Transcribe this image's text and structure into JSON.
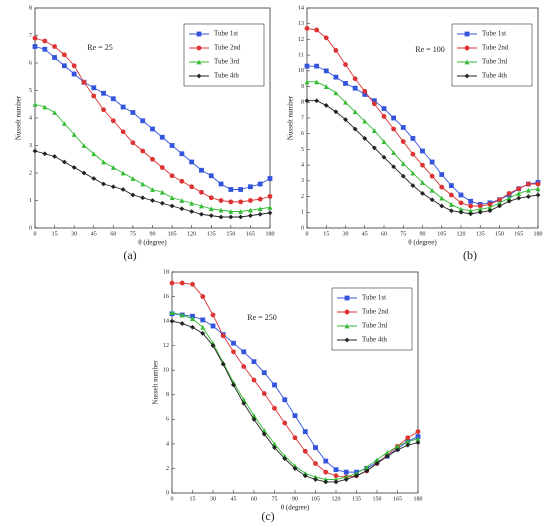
{
  "chart_data": [
    {
      "type": "line",
      "panel_label": "(a)",
      "annotation": "Re = 25",
      "x_label": "θ (degree)",
      "y_label": "Nusselt number",
      "x": [
        0,
        7.5,
        15,
        22.5,
        30,
        37.5,
        45,
        52.5,
        60,
        67.5,
        75,
        82.5,
        90,
        97.5,
        105,
        112.5,
        120,
        127.5,
        135,
        142.5,
        150,
        157.5,
        165,
        172.5,
        180
      ],
      "xlim": [
        0,
        180
      ],
      "xticks": [
        0,
        15,
        30,
        45,
        60,
        75,
        90,
        105,
        120,
        135,
        150,
        165,
        180
      ],
      "ylim": [
        0,
        8
      ],
      "yticks": [
        0,
        1,
        2,
        3,
        4,
        5,
        6,
        7,
        8
      ],
      "legend": "upper right",
      "series": [
        {
          "name": "Tube 1st",
          "color": "#3355dd",
          "marker": "square",
          "values": [
            6.6,
            6.5,
            6.2,
            5.9,
            5.6,
            5.3,
            5.1,
            4.9,
            4.7,
            4.4,
            4.2,
            3.9,
            3.6,
            3.3,
            3.0,
            2.7,
            2.4,
            2.1,
            1.9,
            1.6,
            1.4,
            1.4,
            1.5,
            1.6,
            1.8
          ]
        },
        {
          "name": "Tube 2nd",
          "color": "#dd3333",
          "marker": "circle",
          "values": [
            6.9,
            6.8,
            6.6,
            6.3,
            5.9,
            5.3,
            4.8,
            4.3,
            3.9,
            3.5,
            3.1,
            2.8,
            2.5,
            2.2,
            1.9,
            1.7,
            1.5,
            1.3,
            1.1,
            1.0,
            0.95,
            0.95,
            1.0,
            1.05,
            1.15
          ]
        },
        {
          "name": "Tube 3rd",
          "color": "#33bb33",
          "marker": "triangle",
          "values": [
            4.5,
            4.4,
            4.2,
            3.8,
            3.4,
            3.0,
            2.7,
            2.4,
            2.2,
            2.0,
            1.8,
            1.6,
            1.4,
            1.3,
            1.1,
            1.0,
            0.9,
            0.8,
            0.7,
            0.65,
            0.6,
            0.6,
            0.65,
            0.7,
            0.75
          ]
        },
        {
          "name": "Tube 4th",
          "color": "#222222",
          "marker": "diamond",
          "values": [
            2.8,
            2.7,
            2.6,
            2.4,
            2.2,
            2.0,
            1.8,
            1.6,
            1.5,
            1.4,
            1.2,
            1.1,
            1.0,
            0.9,
            0.8,
            0.7,
            0.6,
            0.5,
            0.45,
            0.4,
            0.4,
            0.4,
            0.45,
            0.5,
            0.55
          ]
        }
      ]
    },
    {
      "type": "line",
      "panel_label": "(b)",
      "annotation": "Re = 100",
      "x_label": "θ (degree)",
      "y_label": "Nusselt number",
      "x": [
        0,
        7.5,
        15,
        22.5,
        30,
        37.5,
        45,
        52.5,
        60,
        67.5,
        75,
        82.5,
        90,
        97.5,
        105,
        112.5,
        120,
        127.5,
        135,
        142.5,
        150,
        157.5,
        165,
        172.5,
        180
      ],
      "xlim": [
        0,
        180
      ],
      "xticks": [
        0,
        15,
        30,
        45,
        60,
        75,
        90,
        105,
        120,
        135,
        150,
        165,
        180
      ],
      "ylim": [
        0,
        14
      ],
      "yticks": [
        0,
        1,
        2,
        3,
        4,
        5,
        6,
        7,
        8,
        9,
        10,
        11,
        12,
        13,
        14
      ],
      "legend": "upper right",
      "series": [
        {
          "name": "Tube 1st",
          "color": "#3355dd",
          "marker": "square",
          "values": [
            10.3,
            10.3,
            10.0,
            9.6,
            9.2,
            8.9,
            8.5,
            8.1,
            7.6,
            7.0,
            6.4,
            5.7,
            4.9,
            4.2,
            3.4,
            2.7,
            2.1,
            1.7,
            1.5,
            1.6,
            1.8,
            2.1,
            2.5,
            2.8,
            2.9
          ]
        },
        {
          "name": "Tube 2nd",
          "color": "#dd3333",
          "marker": "circle",
          "values": [
            12.7,
            12.6,
            12.1,
            11.3,
            10.4,
            9.5,
            8.7,
            7.9,
            7.1,
            6.3,
            5.5,
            4.7,
            4.0,
            3.3,
            2.6,
            2.1,
            1.6,
            1.4,
            1.4,
            1.5,
            1.8,
            2.2,
            2.5,
            2.8,
            2.8
          ]
        },
        {
          "name": "Tube 3rd",
          "color": "#33bb33",
          "marker": "triangle",
          "values": [
            9.3,
            9.3,
            9.0,
            8.6,
            8.0,
            7.4,
            6.8,
            6.2,
            5.5,
            4.8,
            4.1,
            3.5,
            2.9,
            2.4,
            1.9,
            1.5,
            1.2,
            1.1,
            1.2,
            1.3,
            1.6,
            1.9,
            2.2,
            2.4,
            2.5
          ]
        },
        {
          "name": "Tube 4th",
          "color": "#222222",
          "marker": "diamond",
          "values": [
            8.1,
            8.1,
            7.8,
            7.4,
            6.9,
            6.3,
            5.7,
            5.1,
            4.5,
            3.9,
            3.3,
            2.7,
            2.2,
            1.8,
            1.4,
            1.1,
            1.0,
            0.9,
            1.0,
            1.1,
            1.4,
            1.7,
            1.9,
            2.0,
            2.1
          ]
        }
      ]
    },
    {
      "type": "line",
      "panel_label": "(c)",
      "annotation": "Re = 250",
      "x_label": "θ (degree)",
      "y_label": "Nusselt number",
      "x": [
        0,
        7.5,
        15,
        22.5,
        30,
        37.5,
        45,
        52.5,
        60,
        67.5,
        75,
        82.5,
        90,
        97.5,
        105,
        112.5,
        120,
        127.5,
        135,
        142.5,
        150,
        157.5,
        165,
        172.5,
        180
      ],
      "xlim": [
        0,
        180
      ],
      "xticks": [
        0,
        15,
        30,
        45,
        60,
        75,
        90,
        105,
        120,
        135,
        150,
        165,
        180
      ],
      "ylim": [
        0,
        18
      ],
      "yticks": [
        0,
        2,
        4,
        6,
        8,
        10,
        12,
        14,
        16,
        18
      ],
      "legend": "upper right",
      "series": [
        {
          "name": "Tube 1st",
          "color": "#3355dd",
          "marker": "square",
          "values": [
            14.6,
            14.5,
            14.4,
            14.1,
            13.6,
            12.9,
            12.2,
            11.5,
            10.7,
            9.8,
            8.8,
            7.6,
            6.3,
            5.0,
            3.7,
            2.6,
            1.9,
            1.7,
            1.7,
            2.0,
            2.5,
            3.0,
            3.6,
            4.2,
            4.6
          ]
        },
        {
          "name": "Tube 2nd",
          "color": "#dd3333",
          "marker": "circle",
          "values": [
            17.1,
            17.1,
            17.0,
            16.0,
            14.5,
            12.8,
            11.5,
            10.3,
            9.2,
            8.1,
            6.9,
            5.7,
            4.5,
            3.4,
            2.4,
            1.7,
            1.4,
            1.3,
            1.4,
            1.8,
            2.4,
            3.1,
            3.8,
            4.5,
            5.0
          ]
        },
        {
          "name": "Tube 3rd",
          "color": "#33bb33",
          "marker": "triangle",
          "values": [
            14.7,
            14.5,
            14.2,
            13.5,
            12.2,
            10.6,
            9.0,
            7.6,
            6.3,
            5.1,
            4.0,
            3.0,
            2.2,
            1.6,
            1.3,
            1.1,
            1.1,
            1.3,
            1.6,
            2.1,
            2.7,
            3.3,
            3.8,
            4.2,
            4.4
          ]
        },
        {
          "name": "Tube 4th",
          "color": "#222222",
          "marker": "diamond",
          "values": [
            14.0,
            13.8,
            13.5,
            13.0,
            12.0,
            10.5,
            8.8,
            7.3,
            6.0,
            4.8,
            3.7,
            2.8,
            2.0,
            1.4,
            1.1,
            0.9,
            0.9,
            1.1,
            1.4,
            1.8,
            2.4,
            3.0,
            3.5,
            3.9,
            4.1
          ]
        }
      ]
    }
  ]
}
